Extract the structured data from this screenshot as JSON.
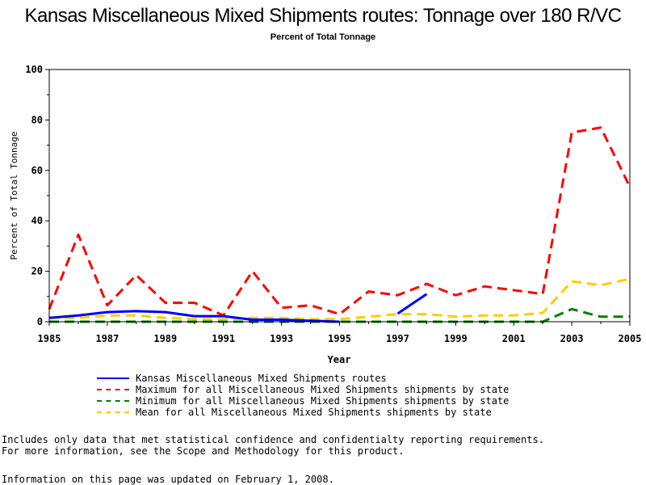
{
  "chart_data": {
    "type": "line",
    "title": "Kansas Miscellaneous Mixed Shipments routes: Tonnage over 180 R/VC",
    "subtitle": "Percent of Total Tonnage",
    "xlabel": "Year",
    "ylabel": "Percent of Total Tonnage",
    "xlim": [
      1985,
      2005
    ],
    "ylim": [
      0,
      100
    ],
    "x_ticks": [
      "1985",
      "1987",
      "1989",
      "1991",
      "1993",
      "1995",
      "1997",
      "1999",
      "2001",
      "2003",
      "2005"
    ],
    "y_ticks": [
      "0",
      "20",
      "40",
      "60",
      "80",
      "100"
    ],
    "grid": false,
    "legend_position": "bottom",
    "x": [
      1985,
      1986,
      1987,
      1988,
      1989,
      1990,
      1991,
      1992,
      1993,
      1994,
      1995,
      1996,
      1997,
      1998,
      1999,
      2000,
      2001,
      2002,
      2003,
      2004,
      2005
    ],
    "series": [
      {
        "name": "Kansas Miscellaneous Mixed Shipments routes",
        "color": "#0000ff",
        "dash": "solid",
        "values": [
          1.5,
          2.5,
          3.8,
          4.2,
          3.8,
          2.2,
          2.2,
          0.8,
          0.8,
          0.4,
          0.0,
          null,
          3.2,
          11.0,
          null,
          null,
          null,
          null,
          null,
          null,
          null
        ]
      },
      {
        "name": "Maximum for all Miscellaneous Mixed Shipments shipments by state",
        "color": "#ff0000",
        "dash": "dashed",
        "values": [
          5,
          34.5,
          6.5,
          18.5,
          7.5,
          7.5,
          2.5,
          20,
          5.5,
          6.5,
          3,
          12,
          10.5,
          15,
          10.5,
          14,
          12.5,
          11,
          75,
          77,
          53.5
        ]
      },
      {
        "name": "Minimum for all Miscellaneous Mixed Shipments shipments by state",
        "color": "#008000",
        "dash": "dashed",
        "values": [
          0,
          0,
          0,
          0,
          0,
          0,
          0,
          0,
          0,
          0,
          0,
          0,
          0,
          0,
          0,
          0,
          0,
          0,
          5,
          2,
          2
        ]
      },
      {
        "name": "Mean for all Miscellaneous Mixed Shipments shipments by state",
        "color": "#ffcc00",
        "dash": "dashed",
        "values": [
          1.5,
          1.5,
          2.5,
          2.5,
          1.5,
          1.0,
          1.0,
          1.5,
          1.5,
          1.0,
          1.0,
          2.0,
          3.0,
          3.0,
          2.0,
          2.5,
          2.5,
          3.5,
          16,
          14.5,
          17
        ]
      }
    ]
  },
  "notes": {
    "line1": "Includes only data that met statistical confidence and confidentialty reporting requirements.",
    "line2": "For more information, see the Scope and Methodology for this product.",
    "updated": "Information on this page was updated on February 1, 2008."
  }
}
